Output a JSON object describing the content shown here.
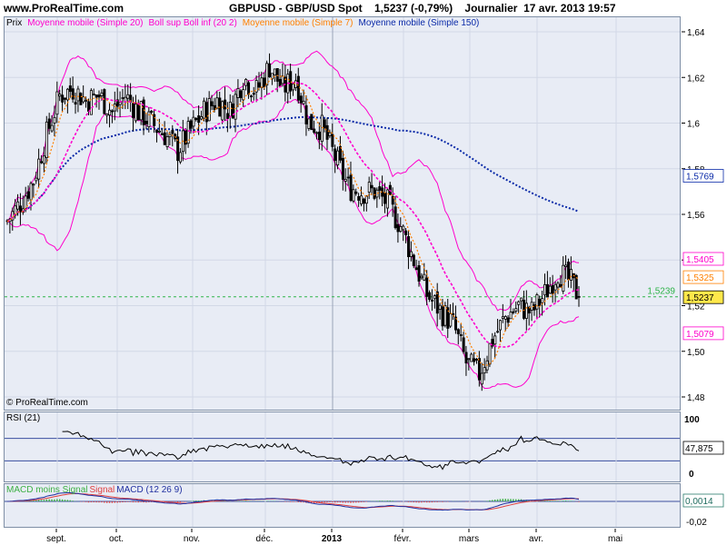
{
  "header": {
    "site": "www.ProRealTime.com",
    "title": "GBPUSD - GBP/USD Spot    1,5237 (-0,79%)    Journalier  17 avr. 2013 19:57"
  },
  "price_panel": {
    "legend": {
      "prix": "Prix",
      "sma20": "Moyenne mobile (Simple 20)",
      "boll": "Boll sup Boll inf (20 2)",
      "sma7": "Moyenne mobile (Simple 7)",
      "sma150": "Moyenne mobile (Simple 150)"
    },
    "copyright": "© ProRealTime.com",
    "ref_level_label": "1,5239",
    "value_labels": {
      "sma150": "1,5769",
      "boll_sup": "1,5405",
      "sma7": "1,5325",
      "last": "1,5237",
      "boll_inf": "1,5079"
    }
  },
  "rsi_panel": {
    "legend": "RSI (21)",
    "value_label": "47,875",
    "ticks": [
      "100",
      "0"
    ]
  },
  "macd_panel": {
    "legend_signal": "MACD moins Signal",
    "legend_signal_line": "Signal",
    "legend_macd": "MACD (12 26 9)",
    "value_label": "0,0014",
    "low_tick": "-0,02"
  },
  "x_axis": {
    "labels": [
      "sept.",
      "oct.",
      "nov.",
      "déc.",
      "2013",
      "févr.",
      "mars",
      "avr.",
      "mai"
    ]
  },
  "colors": {
    "candle": "#000000",
    "boll": "#ff00cc",
    "sma20": "#ff00cc",
    "sma7": "#ff8000",
    "sma150": "#0a2aa8",
    "last_box": "#ffe84a",
    "ref_line": "#2fb34a",
    "panel_bg": "#e8ecf5",
    "rsi_line": "#000000",
    "macd_pos": "#3cb043",
    "macd_neg": "#e04040"
  },
  "chart_data": [
    {
      "type": "candlestick",
      "title": "GBPUSD - GBP/USD Spot",
      "ylim": [
        1.47,
        1.645
      ],
      "yticks": [
        1.48,
        1.5,
        1.52,
        1.54,
        1.56,
        1.58,
        1.6,
        1.62,
        1.64
      ],
      "xticks": [
        "sept.",
        "oct.",
        "nov.",
        "déc.",
        "2013",
        "févr.",
        "mars",
        "avr.",
        "mai"
      ],
      "close_path": [
        [
          0,
          1.557
        ],
        [
          5,
          1.565
        ],
        [
          10,
          1.575
        ],
        [
          15,
          1.595
        ],
        [
          20,
          1.612
        ],
        [
          25,
          1.615
        ],
        [
          30,
          1.61
        ],
        [
          35,
          1.612
        ],
        [
          40,
          1.605
        ],
        [
          45,
          1.612
        ],
        [
          50,
          1.605
        ],
        [
          55,
          1.6
        ],
        [
          60,
          1.595
        ],
        [
          65,
          1.588
        ],
        [
          70,
          1.597
        ],
        [
          75,
          1.605
        ],
        [
          80,
          1.61
        ],
        [
          85,
          1.605
        ],
        [
          90,
          1.62
        ],
        [
          95,
          1.614
        ],
        [
          100,
          1.625
        ],
        [
          105,
          1.615
        ],
        [
          110,
          1.62
        ],
        [
          115,
          1.6
        ],
        [
          120,
          1.598
        ],
        [
          125,
          1.585
        ],
        [
          130,
          1.572
        ],
        [
          135,
          1.57
        ],
        [
          140,
          1.57
        ],
        [
          145,
          1.565
        ],
        [
          150,
          1.555
        ],
        [
          155,
          1.54
        ],
        [
          160,
          1.525
        ],
        [
          165,
          1.518
        ],
        [
          170,
          1.512
        ],
        [
          175,
          1.495
        ],
        [
          180,
          1.49
        ],
        [
          185,
          1.505
        ],
        [
          190,
          1.515
        ],
        [
          195,
          1.52
        ],
        [
          200,
          1.517
        ],
        [
          205,
          1.525
        ],
        [
          210,
          1.535
        ],
        [
          215,
          1.53
        ],
        [
          218,
          1.524
        ]
      ],
      "last": 1.5237,
      "reference_level": 1.5239,
      "sma150_end": 1.5769,
      "boll_sup_end": 1.5405,
      "sma7_end": 1.5325,
      "boll_inf_end": 1.5079
    },
    {
      "type": "line",
      "title": "RSI (21)",
      "ylim": [
        0,
        100
      ],
      "last": 47.875
    },
    {
      "type": "bar",
      "title": "MACD (12 26 9)",
      "last": 0.0014,
      "low_tick": -0.02
    }
  ]
}
